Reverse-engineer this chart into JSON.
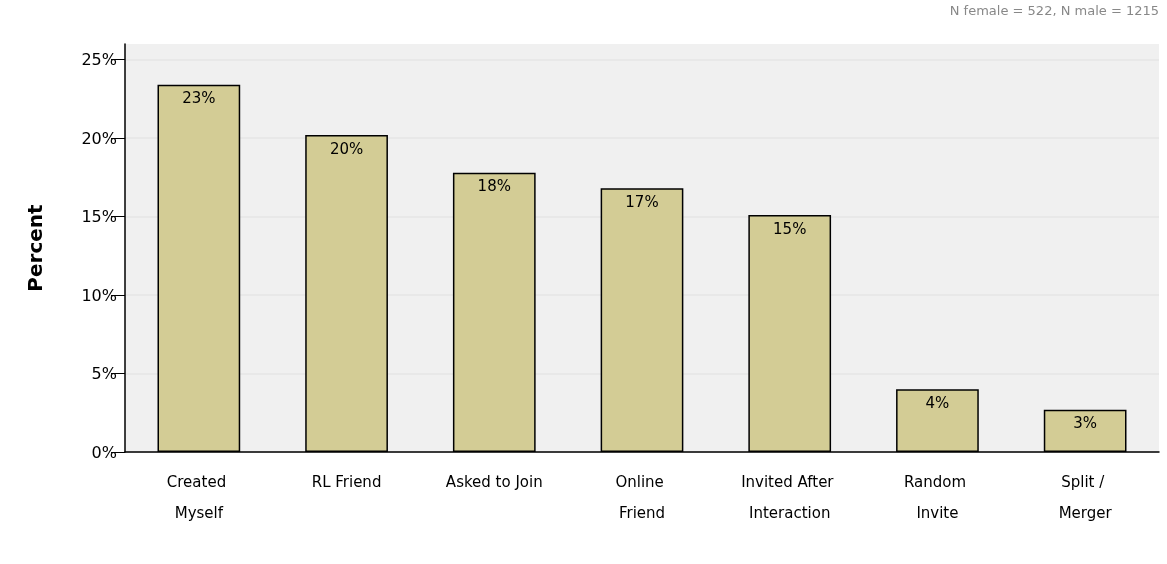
{
  "chart_data": {
    "type": "bar",
    "ylabel": "Percent",
    "annotations": [
      "N female = 522, N male = 1215"
    ],
    "categories": [
      "Created Myself",
      "RL Friend",
      "Asked to Join",
      "Online Friend",
      "Invited After Interaction",
      "Random Invite",
      "Split / Merger"
    ],
    "values": [
      23.4,
      20.2,
      17.8,
      16.8,
      15.1,
      4.0,
      2.7
    ],
    "value_labels": [
      "23%",
      "20%",
      "18%",
      "17%",
      "15%",
      "4%",
      "3%"
    ],
    "color": "#d3cc95",
    "ylim": [
      0,
      26
    ],
    "yticks": [
      {
        "value": 0,
        "label": "0%"
      },
      {
        "value": 5,
        "label": "5%"
      },
      {
        "value": 10,
        "label": "10%"
      },
      {
        "value": 15,
        "label": "15%"
      },
      {
        "value": 20,
        "label": "20%"
      },
      {
        "value": 25,
        "label": "25%"
      }
    ],
    "grid": "y"
  }
}
